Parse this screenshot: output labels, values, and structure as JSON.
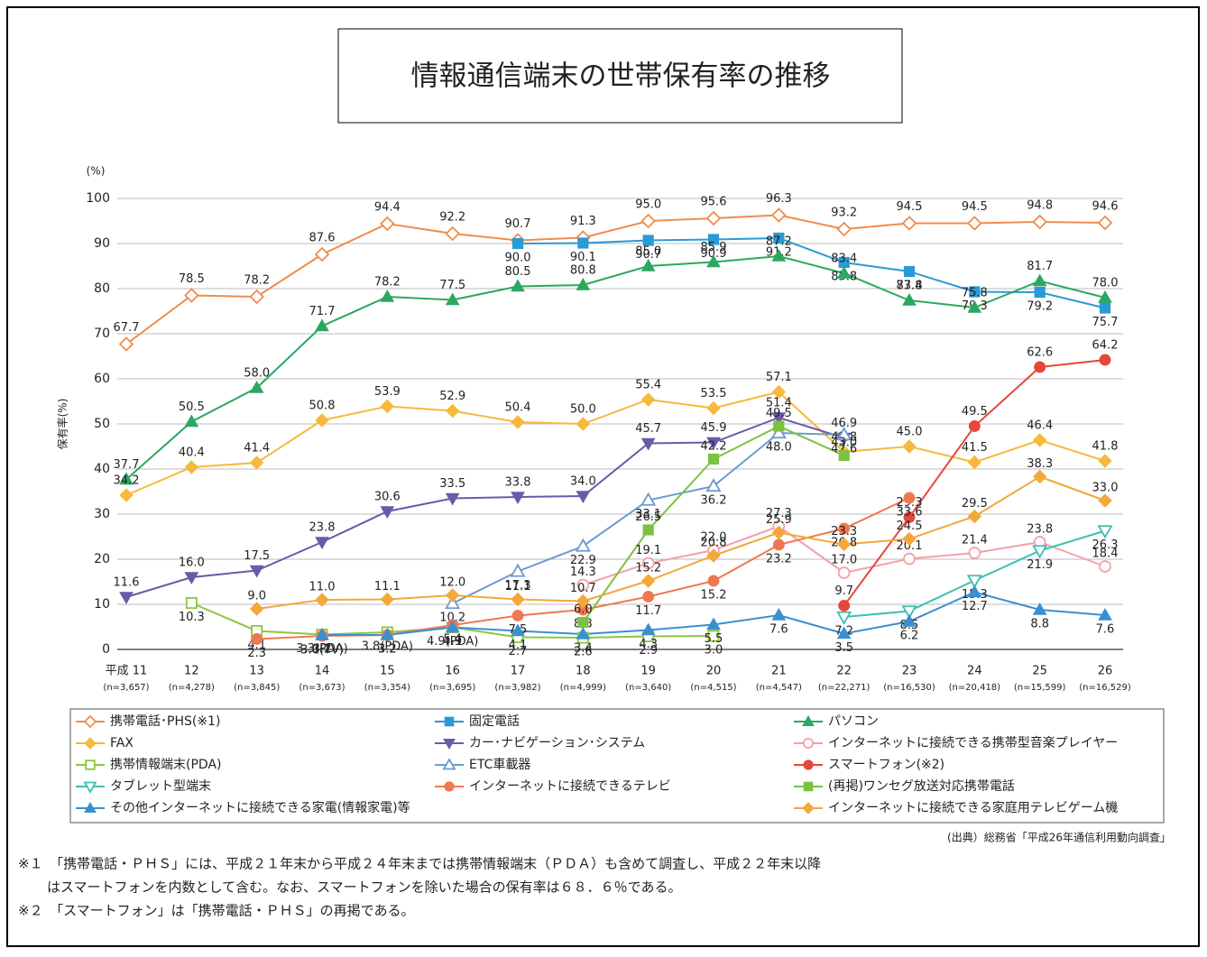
{
  "chart_data": {
    "type": "line",
    "title": "情報通信端末の世帯保有率の推移",
    "y_unit": "(%)",
    "ylabel": "保有率(%)",
    "categories": [
      "平成 11",
      "12",
      "13",
      "14",
      "15",
      "16",
      "17",
      "18",
      "19",
      "20",
      "21",
      "22",
      "23",
      "24",
      "25",
      "26"
    ],
    "sample_sizes": [
      "(n=3,657)",
      "(n=4,278)",
      "(n=3,845)",
      "(n=3,673)",
      "(n=3,354)",
      "(n=3,695)",
      "(n=3,982)",
      "(n=4,999)",
      "(n=3,640)",
      "(n=4,515)",
      "(n=4,547)",
      "(n=22,271)",
      "(n=16,530)",
      "(n=20,418)",
      "(n=15,599)",
      "(n=16,529)"
    ],
    "ylim": [
      0,
      100
    ],
    "yticks": [
      0,
      10,
      20,
      30,
      40,
      50,
      60,
      70,
      80,
      90,
      100
    ],
    "grid": true,
    "series": [
      {
        "name": "携帯電話･PHS(※1)",
        "color": "#f08c4a",
        "marker": "diamond-open",
        "values": [
          67.7,
          78.5,
          78.2,
          87.6,
          94.4,
          92.2,
          90.7,
          91.3,
          95.0,
          95.6,
          96.3,
          93.2,
          94.5,
          94.5,
          94.8,
          94.6
        ],
        "value_labels": [
          "67.7",
          "78.5",
          "78.2",
          "87.6",
          "94.4",
          "92.2",
          "90.7",
          "91.3",
          "95.0",
          "95.6",
          "96.3",
          "93.2",
          "94.5",
          "94.5",
          "94.8",
          "94.6"
        ]
      },
      {
        "name": "固定電話",
        "color": "#2a9ad6",
        "marker": "square",
        "values": [
          null,
          null,
          null,
          null,
          null,
          null,
          90.0,
          90.1,
          90.7,
          90.9,
          91.2,
          85.8,
          83.8,
          79.3,
          79.2,
          75.7
        ],
        "value_labels": [
          null,
          null,
          null,
          null,
          null,
          null,
          "90.0",
          "90.1",
          "90.7",
          "90.9",
          "91.2",
          "85.8",
          "83.8",
          "79.3",
          "79.2",
          "75.7"
        ]
      },
      {
        "name": "パソコン",
        "color": "#2aa860",
        "marker": "triangle",
        "values": [
          37.7,
          50.5,
          58.0,
          71.7,
          78.2,
          77.5,
          80.5,
          80.8,
          85.0,
          85.9,
          87.2,
          83.4,
          77.4,
          75.8,
          81.7,
          78.0
        ],
        "value_labels": [
          "37.7",
          "50.5",
          "58.0",
          "71.7",
          "78.2",
          "77.5",
          "80.5",
          "80.8",
          "85.0",
          "85.9",
          "87.2",
          "83.4",
          "77.4",
          "75.8",
          "81.7",
          "78.0"
        ]
      },
      {
        "name": "FAX",
        "color": "#f6b93b",
        "marker": "diamond",
        "values": [
          34.2,
          40.4,
          41.4,
          50.8,
          53.9,
          52.9,
          50.4,
          50.0,
          55.4,
          53.5,
          57.1,
          43.8,
          45.0,
          41.5,
          46.4,
          41.8
        ],
        "value_labels": [
          "34.2",
          "40.4",
          "41.4",
          "50.8",
          "53.9",
          "52.9",
          "50.4",
          "50.0",
          "55.4",
          "53.5",
          "57.1",
          "43.8",
          "45.0",
          "41.5",
          "46.4",
          "41.8"
        ]
      },
      {
        "name": "カー･ナビゲーション･システム",
        "color": "#6a5aa8",
        "marker": "triangle-down",
        "values": [
          11.6,
          16.0,
          17.5,
          23.8,
          30.6,
          33.5,
          33.8,
          34.0,
          45.7,
          45.9,
          51.4,
          46.9,
          null,
          null,
          null,
          null
        ],
        "value_labels": [
          "11.6",
          "16.0",
          "17.5",
          "23.8",
          "30.6",
          "33.5",
          "33.8",
          "34.0",
          "45.7",
          "45.9",
          "51.4",
          "46.9",
          null,
          null,
          null,
          null
        ]
      },
      {
        "name": "インターネットに接続できる携帯型音楽プレイヤー",
        "color": "#f4a0a8",
        "marker": "circle-open",
        "values": [
          null,
          null,
          null,
          null,
          null,
          null,
          null,
          14.3,
          19.1,
          22.0,
          27.3,
          17.0,
          20.1,
          21.4,
          23.8,
          18.4
        ],
        "value_labels": [
          null,
          null,
          null,
          null,
          null,
          null,
          null,
          "14.3",
          "19.1",
          "22.0",
          "27.3",
          "17.0",
          "20.1",
          "21.4",
          "23.8",
          "18.4"
        ]
      },
      {
        "name": "携帯情報端末(PDA)",
        "color": "#8cc63f",
        "marker": "square-open",
        "values": [
          null,
          10.3,
          4.1,
          3.3,
          3.8,
          4.9,
          2.7,
          2.6,
          2.9,
          3.0,
          null,
          null,
          null,
          null,
          null,
          null
        ],
        "value_labels": [
          null,
          "10.3",
          "4.1",
          "3.3(PDA)",
          "3.8(PDA)",
          "4.9(PDA)",
          "2.7",
          "2.6",
          "2.9",
          "3.0",
          null,
          null,
          null,
          null,
          null,
          null
        ]
      },
      {
        "name": "ETC車載器",
        "color": "#6b9bd1",
        "marker": "triangle-open",
        "values": [
          null,
          null,
          null,
          null,
          null,
          10.2,
          17.3,
          22.9,
          33.1,
          36.2,
          48.0,
          47.6,
          null,
          null,
          null,
          null
        ],
        "value_labels": [
          null,
          null,
          null,
          null,
          null,
          "10.2",
          "17.3",
          "22.9",
          "33.1",
          "36.2",
          "48.0",
          "47.6",
          null,
          null,
          null,
          null
        ]
      },
      {
        "name": "スマートフォン(※2)",
        "color": "#e5473d",
        "marker": "circle",
        "values": [
          null,
          null,
          null,
          null,
          null,
          null,
          null,
          null,
          null,
          null,
          null,
          9.7,
          29.3,
          49.5,
          62.6,
          64.2
        ],
        "value_labels": [
          null,
          null,
          null,
          null,
          null,
          null,
          null,
          null,
          null,
          null,
          null,
          "9.7",
          "29.3",
          "49.5",
          "62.6",
          "64.2"
        ]
      },
      {
        "name": "タブレット型端末",
        "color": "#3dbfb0",
        "marker": "triangle-down-open",
        "values": [
          null,
          null,
          null,
          null,
          null,
          null,
          null,
          null,
          null,
          null,
          null,
          7.2,
          8.5,
          15.3,
          21.9,
          26.3
        ],
        "value_labels": [
          null,
          null,
          null,
          null,
          null,
          null,
          null,
          null,
          null,
          null,
          null,
          "7.2",
          "8.5",
          "15.3",
          "21.9",
          "26.3"
        ]
      },
      {
        "name": "インターネットに接続できるテレビ",
        "color": "#f07850",
        "marker": "circle",
        "values": [
          null,
          null,
          2.3,
          3.0,
          3.2,
          5.4,
          7.5,
          8.8,
          11.7,
          15.2,
          23.2,
          26.8,
          33.6,
          null,
          null,
          null
        ],
        "value_labels": [
          null,
          null,
          "2.3",
          "3.0(TV)",
          "3.2",
          "5.4",
          "7.5",
          "8.8",
          "11.7",
          "15.2",
          "23.2",
          "26.8",
          "33.6",
          null,
          null,
          null
        ]
      },
      {
        "name": "(再掲)ワンセグ放送対応携帯電話",
        "color": "#7cc242",
        "marker": "square",
        "values": [
          null,
          null,
          null,
          null,
          null,
          null,
          null,
          6.0,
          26.5,
          42.2,
          49.5,
          43.0,
          null,
          null,
          null,
          null
        ],
        "value_labels": [
          null,
          null,
          null,
          null,
          null,
          null,
          null,
          "6.0",
          "26.5",
          "42.2",
          "49.5",
          "43.0",
          null,
          null,
          null,
          null
        ]
      },
      {
        "name": "その他インターネットに接続できる家電(情報家電)等",
        "color": "#3a8fd0",
        "marker": "triangle",
        "values": [
          null,
          null,
          null,
          3.2,
          3.2,
          4.9,
          4.1,
          3.4,
          4.3,
          5.5,
          7.6,
          3.5,
          6.2,
          12.7,
          8.8,
          7.6
        ],
        "value_labels": [
          null,
          null,
          null,
          "3.2",
          "3.2",
          "4.9",
          "4.1",
          "3.4",
          "4.3",
          "5.5",
          "7.6",
          "3.5",
          "6.2",
          "12.7",
          "8.8",
          "7.6"
        ]
      },
      {
        "name": "インターネットに接続できる家庭用テレビゲーム機",
        "color": "#f3a83a",
        "marker": "diamond",
        "values": [
          null,
          null,
          9.0,
          11.0,
          11.1,
          12.0,
          11.1,
          10.7,
          15.2,
          20.8,
          25.9,
          23.3,
          24.5,
          29.5,
          38.3,
          33.0
        ],
        "value_labels": [
          null,
          null,
          "9.0",
          "11.0",
          "11.1",
          "12.0",
          "11.1",
          "10.7",
          "15.2",
          "20.8",
          "25.9",
          "23.3",
          "24.5",
          "29.5",
          "38.3",
          "33.0"
        ]
      }
    ],
    "source": "(出典）総務省「平成26年通信利用動向調査」",
    "notes": [
      "※１　「携帯電話・ＰＨＳ」には、平成２１年末から平成２４年末までは携帯情報端末（ＰＤＡ）も含めて調査し、平成２２年末以降",
      "はスマートフォンを内数として含む。なお、スマートフォンを除いた場合の保有率は６８．６％である。",
      "※２　「スマートフォン」は「携帯電話・ＰＨＳ」の再掲である。"
    ]
  }
}
